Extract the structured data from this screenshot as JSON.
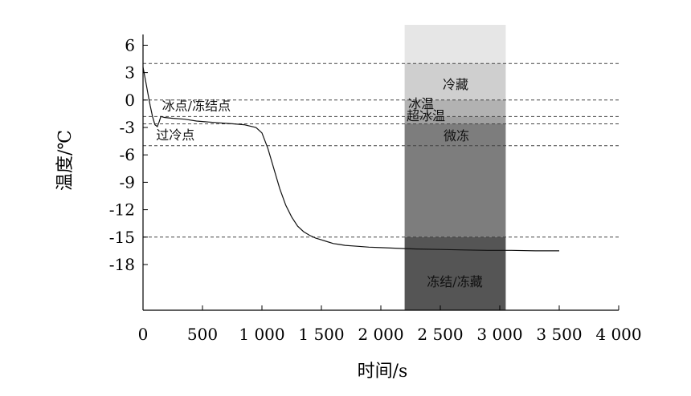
{
  "chart_data": {
    "type": "line",
    "xlabel": "时间/s",
    "ylabel": "温度/℃",
    "xlim": [
      0,
      4000
    ],
    "ylim": [
      -23,
      7
    ],
    "x_ticks": [
      0,
      500,
      1000,
      1500,
      2000,
      2500,
      3000,
      3500,
      4000
    ],
    "x_tick_labels": [
      "0",
      "500",
      "1 000",
      "1 500",
      "2 000",
      "2 500",
      "3 000",
      "3 500",
      "4 000"
    ],
    "y_ticks": [
      6,
      3,
      0,
      -3,
      -6,
      -9,
      -12,
      -15,
      -18
    ],
    "y_tick_labels": [
      "6",
      "3",
      "0",
      "-3",
      "-6",
      "-9",
      "-12",
      "-15",
      "-18"
    ],
    "reference_lines": [
      4,
      0,
      -1.8,
      -2.6,
      -5,
      -15
    ],
    "zones": [
      {
        "label": "冷藏",
        "y_from": 0,
        "y_to": 4,
        "color": "#cfcfcf"
      },
      {
        "label": "冰温",
        "y_from": -1.8,
        "y_to": 0,
        "color": "#b2b2b2"
      },
      {
        "label": "超冰温",
        "y_from": -2.6,
        "y_to": -1.8,
        "color": "#a0a0a0"
      },
      {
        "label": "微冻",
        "y_from": -15,
        "y_to": -2.6,
        "color": "#7d7d7d"
      },
      {
        "label": "冻结/冻藏",
        "y_from": -23,
        "y_to": -15,
        "color": "#555555"
      }
    ],
    "zone_top_color": "#e6e6e6",
    "zone_x_range": [
      2200,
      3050
    ],
    "annotations": [
      {
        "text": "冰点/冻结点",
        "x": 160,
        "y": -1.1
      },
      {
        "text": "过冷点",
        "x": 110,
        "y": -4.3
      }
    ],
    "series": [
      {
        "x": [
          0,
          20,
          40,
          60,
          80,
          100,
          120,
          135,
          150,
          180,
          250,
          350,
          450,
          550,
          650,
          750,
          850,
          950,
          1000,
          1050,
          1100,
          1150,
          1200,
          1250,
          1300,
          1350,
          1400,
          1450,
          1500,
          1550,
          1600,
          1650,
          1700,
          1800,
          1900,
          2000,
          2100,
          2200,
          2300,
          2500,
          2700,
          2900,
          3100,
          3300,
          3500
        ],
        "y": [
          3.6,
          2.2,
          0.8,
          -0.6,
          -1.8,
          -2.7,
          -2.9,
          -2.4,
          -1.8,
          -1.9,
          -2.0,
          -2.1,
          -2.3,
          -2.4,
          -2.5,
          -2.6,
          -2.7,
          -3.0,
          -3.6,
          -5.3,
          -7.5,
          -9.7,
          -11.5,
          -12.8,
          -13.8,
          -14.4,
          -14.8,
          -15.1,
          -15.3,
          -15.5,
          -15.7,
          -15.8,
          -15.9,
          -16.0,
          -16.1,
          -16.15,
          -16.2,
          -16.25,
          -16.3,
          -16.35,
          -16.4,
          -16.45,
          -16.45,
          -16.5,
          -16.5
        ]
      }
    ]
  }
}
